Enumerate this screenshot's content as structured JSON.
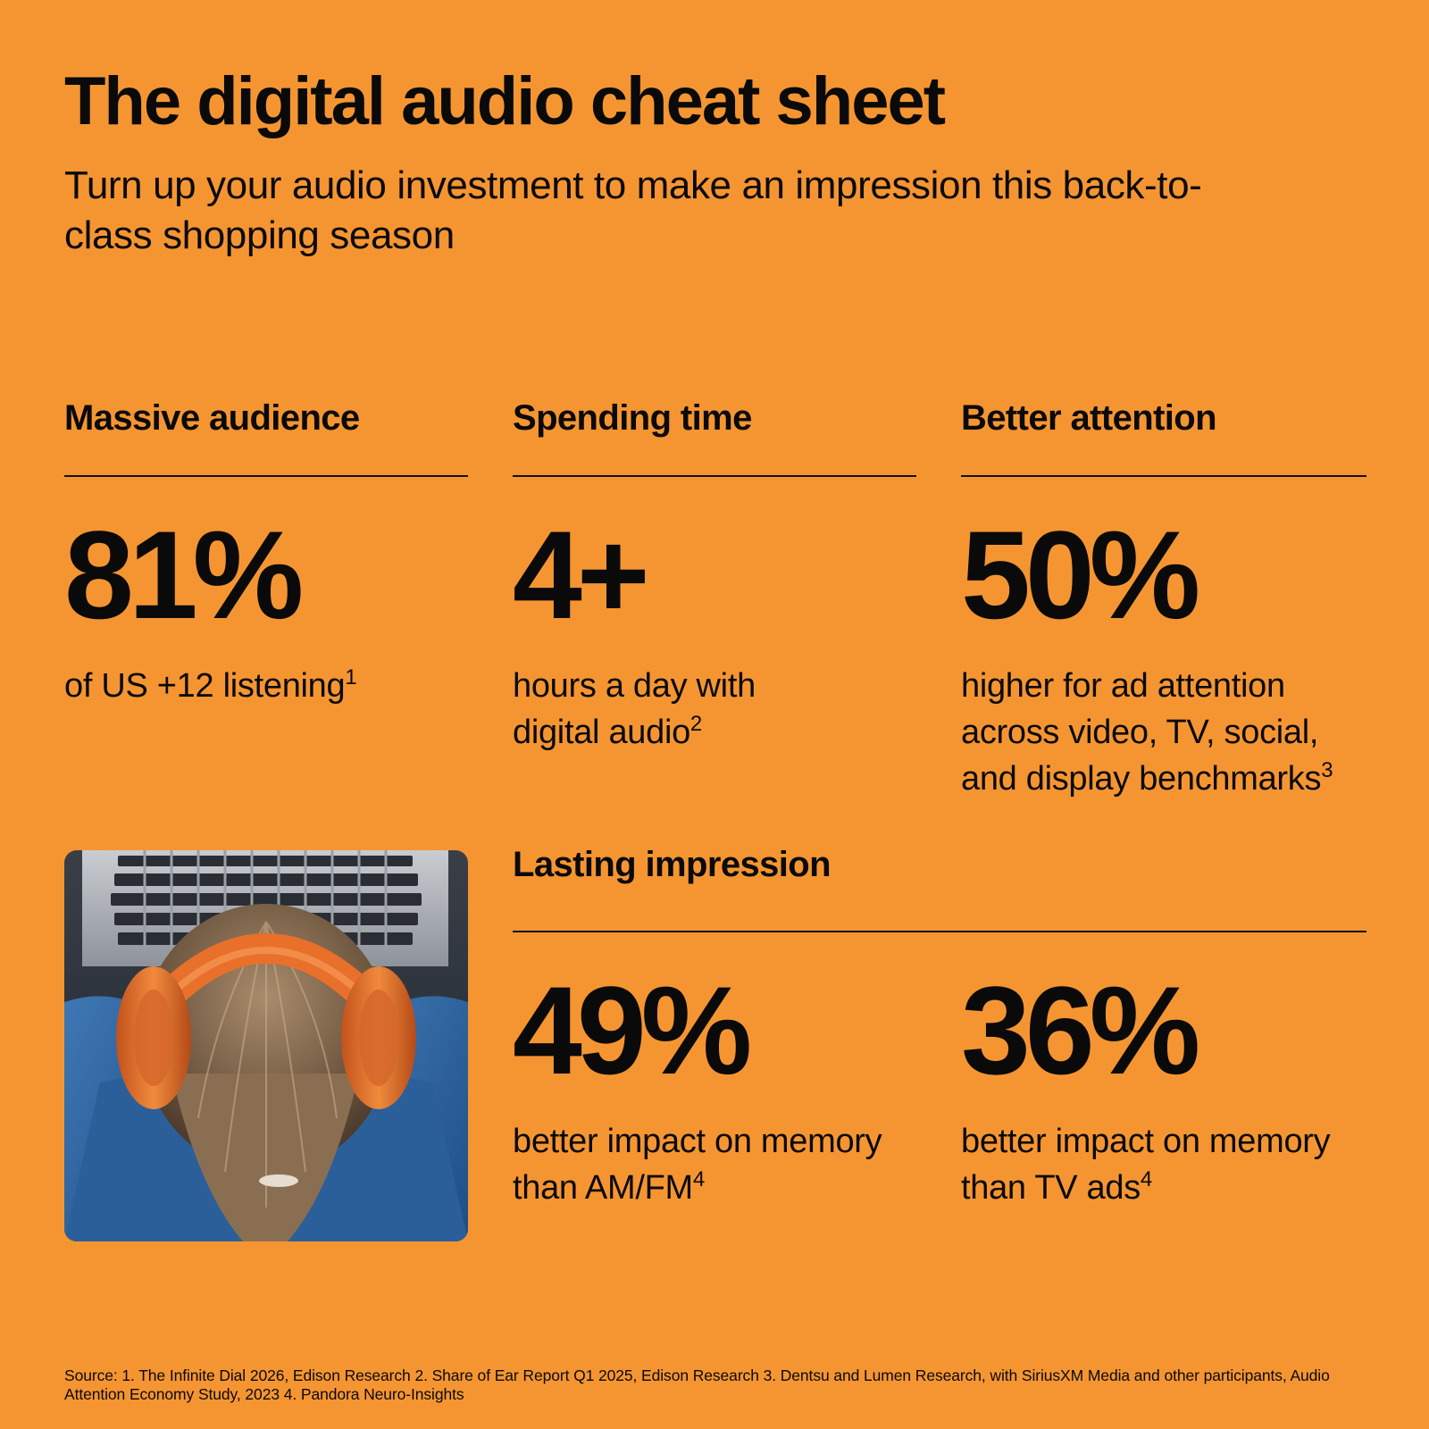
{
  "header": {
    "title": "The digital audio cheat sheet",
    "subtitle": "Turn up your audio investment to make an impression this back-to-class shopping season"
  },
  "stats": [
    {
      "heading": "Massive audience",
      "value": "81%",
      "description": "of US +12 listening",
      "footnote": "1"
    },
    {
      "heading": "Spending time",
      "value": "4+",
      "description": "hours a day with digital audio",
      "footnote": "2"
    },
    {
      "heading": "Better attention",
      "value": "50%",
      "description": "higher for ad attention across video, TV, social, and display benchmarks",
      "footnote": "3"
    }
  ],
  "lasting": {
    "heading": "Lasting impression",
    "items": [
      {
        "value": "49%",
        "description": "better impact on memory than AM/FM",
        "footnote": "4"
      },
      {
        "value": "36%",
        "description": "better impact on memory than TV ads",
        "footnote": "4"
      }
    ]
  },
  "source": "Source: 1. The Infinite Dial 2026, Edison Research 2. Share of Ear Report Q1 2025, Edison Research  3. Dentsu and Lumen Research, with SiriusXM Media and other participants, Audio Attention Economy Study, 2023 4. Pandora Neuro-Insights",
  "colors": {
    "background": "#F59532",
    "text": "#0a0a0a",
    "headphones": "#E8702A"
  }
}
